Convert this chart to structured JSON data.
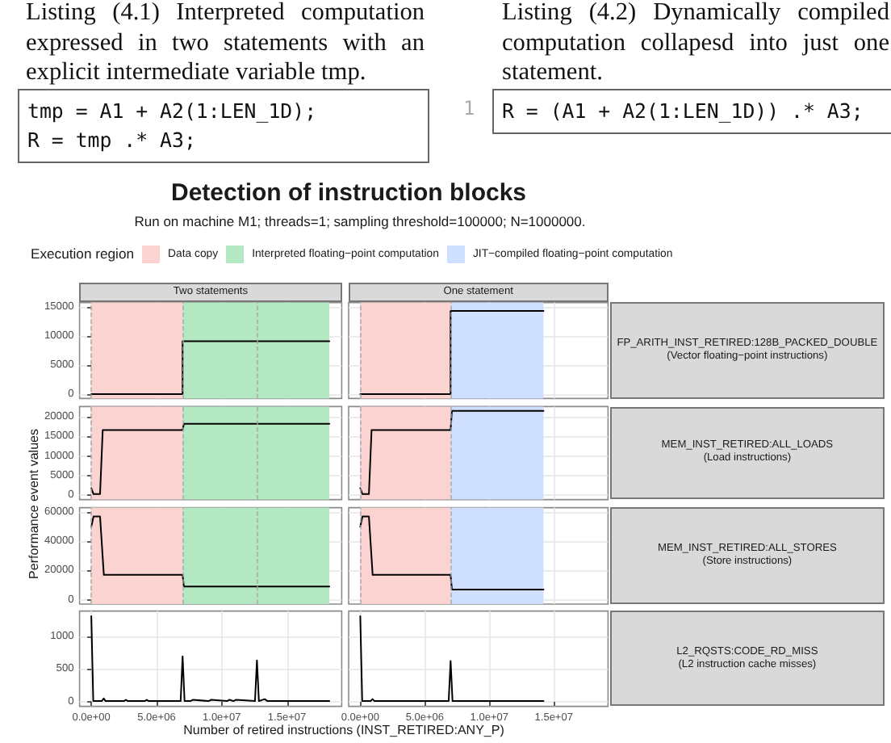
{
  "chart_data": [
    {
      "type": "other",
      "title": "Listing (4.1) Interpreted computation expressed in two statements with an explicit intermediate variable tmp.",
      "annotations": [
        "tmp = A1 + A2(1:LEN_1D);",
        "R = tmp .* A3;"
      ]
    },
    {
      "type": "other",
      "title": "Listing (4.2) Dynamically compiled computation collapesd into just one statement.",
      "annotations": [
        "1",
        "R = (A1 + A2(1:LEN_1D)) .* A3;"
      ]
    },
    {
      "type": "line",
      "title": "Detection of instruction blocks",
      "subtitle": "Run on machine M1; threads=1; sampling threshold=100000; N=1000000.",
      "legend_title": "Execution region",
      "legend": "top",
      "annotations": [
        "Two statements"
      ],
      "series": [
        {
          "color": "#000000",
          "x": [
            0,
            7000000,
            7000000,
            18250000
          ],
          "values": [
            0,
            0,
            9100,
            9100
          ]
        }
      ],
      "xlim": [
        -900000,
        19200000
      ],
      "ylim": [
        -750,
        15750
      ],
      "yticks": [
        0,
        5000,
        10000,
        15000
      ],
      "grid": true,
      "tick_labels": "y",
      "bands": [
        {
          "axis": "x",
          "from": 0,
          "to": 7000000,
          "label": "Data copy",
          "color": "#fbd4d2"
        },
        {
          "axis": "x",
          "from": 7000000,
          "to": 18250000,
          "label": "Interpreted floating−point computation",
          "color": "#b3e8c2"
        }
      ],
      "ref_lines": [
        {
          "axis": "x",
          "value": 0,
          "color": "#a6a6a6",
          "line_style": "dashed"
        },
        {
          "axis": "x",
          "value": 7000000,
          "color": "#a6a6a6",
          "line_style": "dashed"
        },
        {
          "axis": "x",
          "value": 12700000,
          "color": "#a6a6a6",
          "line_style": "dashed"
        }
      ]
    },
    {
      "type": "line",
      "legend": "top",
      "annotations": [
        "One statement",
        "FP_ARITH_INST_RETIRED:128B_PACKED_DOUBLE",
        "(Vector floating−point instructions)"
      ],
      "series": [
        {
          "color": "#000000",
          "x": [
            0,
            7000000,
            7000000,
            14200000
          ],
          "values": [
            0,
            0,
            14300,
            14300
          ]
        }
      ],
      "xlim": [
        -900000,
        19200000
      ],
      "ylim": [
        -750,
        15750
      ],
      "grid": true,
      "tick_labels": false,
      "bands": [
        {
          "axis": "x",
          "from": 0,
          "to": 7000000,
          "color": "#fbd4d2"
        },
        {
          "axis": "x",
          "from": 7000000,
          "to": 14200000,
          "label": "JIT−compiled floating−point computation",
          "color": "#cfdfff"
        }
      ],
      "ref_lines": [
        {
          "axis": "x",
          "value": 0,
          "color": "#a6a6a6",
          "line_style": "dashed"
        },
        {
          "axis": "x",
          "value": 7000000,
          "color": "#a6a6a6",
          "line_style": "dashed"
        }
      ]
    },
    {
      "type": "line",
      "ylabel": "Performance event values",
      "series": [
        {
          "color": "#000000",
          "x": [
            0,
            170000,
            670000,
            875000,
            7000000,
            7100000,
            18250000
          ],
          "values": [
            1800,
            300,
            300,
            16600,
            16600,
            18200,
            18200
          ]
        }
      ],
      "xlim": [
        -900000,
        19200000
      ],
      "ylim": [
        -1100,
        22600
      ],
      "yticks": [
        0,
        5000,
        10000,
        15000,
        20000
      ],
      "grid": true,
      "tick_labels": "y",
      "bands": [
        {
          "axis": "x",
          "from": 0,
          "to": 7000000,
          "color": "#fbd4d2"
        },
        {
          "axis": "x",
          "from": 7000000,
          "to": 18250000,
          "color": "#b3e8c2"
        }
      ],
      "ref_lines": [
        {
          "axis": "x",
          "value": 0,
          "color": "#a6a6a6",
          "line_style": "dashed"
        },
        {
          "axis": "x",
          "value": 7000000,
          "color": "#a6a6a6",
          "line_style": "dashed"
        },
        {
          "axis": "x",
          "value": 12700000,
          "color": "#a6a6a6",
          "line_style": "dashed"
        }
      ]
    },
    {
      "type": "line",
      "annotations": [
        "MEM_INST_RETIRED:ALL_LOADS",
        "(Load instructions)"
      ],
      "series": [
        {
          "color": "#000000",
          "x": [
            0,
            170000,
            670000,
            875000,
            7000000,
            7100000,
            14200000
          ],
          "values": [
            1800,
            300,
            300,
            16600,
            16600,
            21500,
            21500
          ]
        }
      ],
      "xlim": [
        -900000,
        19200000
      ],
      "ylim": [
        -1100,
        22600
      ],
      "grid": true,
      "tick_labels": false,
      "bands": [
        {
          "axis": "x",
          "from": 0,
          "to": 7000000,
          "color": "#fbd4d2"
        },
        {
          "axis": "x",
          "from": 7000000,
          "to": 14200000,
          "color": "#cfdfff"
        }
      ],
      "ref_lines": [
        {
          "axis": "x",
          "value": 0,
          "color": "#a6a6a6",
          "line_style": "dashed"
        },
        {
          "axis": "x",
          "value": 7000000,
          "color": "#a6a6a6",
          "line_style": "dashed"
        }
      ]
    },
    {
      "type": "line",
      "series": [
        {
          "color": "#000000",
          "x": [
            0,
            170000,
            670000,
            960000,
            7000000,
            7100000,
            18250000
          ],
          "values": [
            50000,
            57000,
            57000,
            17000,
            17000,
            9000,
            9000
          ]
        }
      ],
      "xlim": [
        -900000,
        19200000
      ],
      "ylim": [
        -3000,
        63000
      ],
      "yticks": [
        0,
        20000,
        40000,
        60000
      ],
      "grid": true,
      "tick_labels": "y",
      "bands": [
        {
          "axis": "x",
          "from": 0,
          "to": 7000000,
          "color": "#fbd4d2"
        },
        {
          "axis": "x",
          "from": 7000000,
          "to": 18250000,
          "color": "#b3e8c2"
        }
      ],
      "ref_lines": [
        {
          "axis": "x",
          "value": 0,
          "color": "#a6a6a6",
          "line_style": "dashed"
        },
        {
          "axis": "x",
          "value": 7000000,
          "color": "#a6a6a6",
          "line_style": "dashed"
        },
        {
          "axis": "x",
          "value": 12700000,
          "color": "#a6a6a6",
          "line_style": "dashed"
        }
      ]
    },
    {
      "type": "line",
      "annotations": [
        "MEM_INST_RETIRED:ALL_STORES",
        "(Store instructions)"
      ],
      "series": [
        {
          "color": "#000000",
          "x": [
            0,
            170000,
            670000,
            960000,
            7000000,
            7100000,
            14200000
          ],
          "values": [
            50000,
            57000,
            57000,
            17000,
            17000,
            7000,
            7000
          ]
        }
      ],
      "xlim": [
        -900000,
        19200000
      ],
      "ylim": [
        -3000,
        63000
      ],
      "grid": true,
      "tick_labels": false,
      "bands": [
        {
          "axis": "x",
          "from": 0,
          "to": 7000000,
          "color": "#fbd4d2"
        },
        {
          "axis": "x",
          "from": 7000000,
          "to": 14200000,
          "color": "#cfdfff"
        }
      ],
      "ref_lines": [
        {
          "axis": "x",
          "value": 0,
          "color": "#a6a6a6",
          "line_style": "dashed"
        },
        {
          "axis": "x",
          "value": 7000000,
          "color": "#a6a6a6",
          "line_style": "dashed"
        }
      ]
    },
    {
      "type": "line",
      "xlabel": "Number of retired instructions (INST_RETIRED:ANY_P)",
      "series": [
        {
          "color": "#000000",
          "x": [
            0,
            150000,
            800000,
            950000,
            1100000,
            2500000,
            2650000,
            2800000,
            4100000,
            4250000,
            4400000,
            5900000,
            6850000,
            7000000,
            7150000,
            7600000,
            7800000,
            9000000,
            9200000,
            10400000,
            10600000,
            10900000,
            11100000,
            12550000,
            12700000,
            12850000,
            13300000,
            13500000,
            18250000
          ],
          "values": [
            1300,
            10,
            10,
            50,
            10,
            10,
            30,
            10,
            10,
            30,
            10,
            10,
            10,
            690,
            10,
            10,
            30,
            10,
            30,
            10,
            30,
            10,
            30,
            10,
            630,
            10,
            40,
            10,
            10
          ]
        }
      ],
      "xlim": [
        -900000,
        19200000
      ],
      "xticks": [
        {
          "value": 0,
          "label": "0.0e+00"
        },
        {
          "value": 5000000,
          "label": "5.0e+06"
        },
        {
          "value": 10000000,
          "label": "1.0e+07"
        },
        {
          "value": 15000000,
          "label": "1.5e+07"
        }
      ],
      "ylim": [
        -70,
        1380
      ],
      "yticks": [
        0,
        500,
        1000
      ],
      "grid": true
    },
    {
      "type": "line",
      "annotations": [
        "L2_RQSTS:CODE_RD_MISS",
        "(L2 instruction cache misses)"
      ],
      "series": [
        {
          "color": "#000000",
          "x": [
            0,
            150000,
            800000,
            950000,
            1100000,
            6850000,
            7000000,
            7150000,
            14200000
          ],
          "values": [
            1300,
            10,
            10,
            40,
            10,
            10,
            620,
            10,
            10
          ]
        }
      ],
      "xlim": [
        -900000,
        19200000
      ],
      "xticks": [
        {
          "value": 0,
          "label": "0.0e+00"
        },
        {
          "value": 5000000,
          "label": "5.0e+06"
        },
        {
          "value": 10000000,
          "label": "1.0e+07"
        },
        {
          "value": 15000000,
          "label": "1.5e+07"
        }
      ],
      "ylim": [
        -70,
        1380
      ],
      "grid": true,
      "tick_labels": "x"
    }
  ]
}
